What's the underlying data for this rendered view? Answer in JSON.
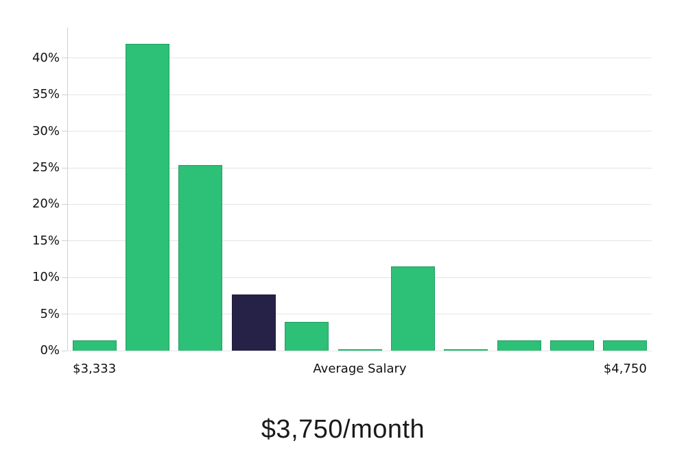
{
  "chart_data": {
    "type": "bar",
    "title": "$3,750/month",
    "y_axis": {
      "tick_values": [
        0,
        5,
        10,
        15,
        20,
        25,
        30,
        35,
        40
      ],
      "tick_labels": [
        "0%",
        "5%",
        "10%",
        "15%",
        "20%",
        "25%",
        "30%",
        "35%",
        "40%"
      ],
      "max_value": 44.2,
      "grid": true
    },
    "x_axis": {
      "labels": [
        {
          "text": "$3,333",
          "slot": 0
        },
        {
          "text": "Average Salary",
          "slot": 5
        },
        {
          "text": "$4,750",
          "slot": 10
        }
      ]
    },
    "bars": {
      "bin_count": 11,
      "values_percent": [
        1.4,
        42,
        25.4,
        7.7,
        3.9,
        0.2,
        11.5,
        0.2,
        1.4,
        1.4,
        1.4
      ],
      "highlight_index": 3
    },
    "colors": {
      "bar": "#2dc077",
      "highlight_bar": "#262247",
      "grid_line": "#e4e4e4",
      "axis_line": "#cfcfcf",
      "text": "#111111"
    },
    "legend": null,
    "xlabel": "",
    "ylabel": ""
  }
}
